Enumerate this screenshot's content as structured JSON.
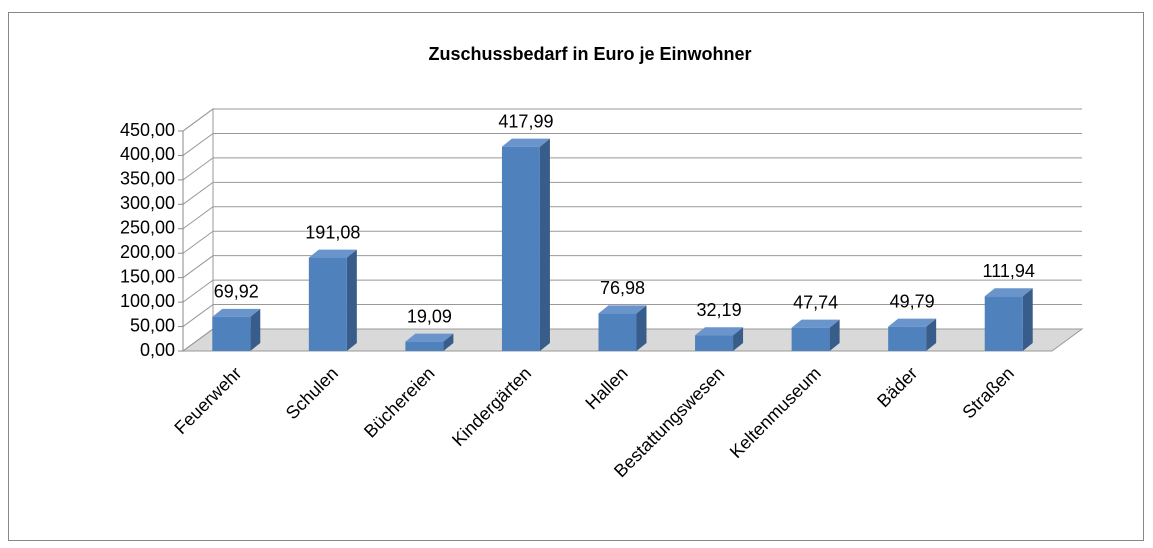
{
  "chart_data": {
    "type": "bar",
    "title": "Zuschussbedarf in Euro je Einwohner",
    "categories": [
      "Feuerwehr",
      "Schulen",
      "Büchereien",
      "Kindergärten",
      "Hallen",
      "Bestattungswesen",
      "Keltenmuseum",
      "Bäder",
      "Straßen"
    ],
    "values": [
      69.92,
      191.08,
      19.09,
      417.99,
      76.98,
      32.19,
      47.74,
      49.79,
      111.94
    ],
    "value_labels": [
      "69,92",
      "191,08",
      "19,09",
      "417,99",
      "76,98",
      "32,19",
      "47,74",
      "49,79",
      "111,94"
    ],
    "color": "#4f81bd",
    "ylim": [
      0,
      450
    ],
    "yticks": [
      {
        "value": 0,
        "label": "0,00"
      },
      {
        "value": 50,
        "label": "50,00"
      },
      {
        "value": 100,
        "label": "100,00"
      },
      {
        "value": 150,
        "label": "150,00"
      },
      {
        "value": 200,
        "label": "200,00"
      },
      {
        "value": 250,
        "label": "250,00"
      },
      {
        "value": 300,
        "label": "300,00"
      },
      {
        "value": 350,
        "label": "350,00"
      },
      {
        "value": 400,
        "label": "400,00"
      },
      {
        "value": 450,
        "label": "450,00"
      }
    ],
    "grid": true
  }
}
